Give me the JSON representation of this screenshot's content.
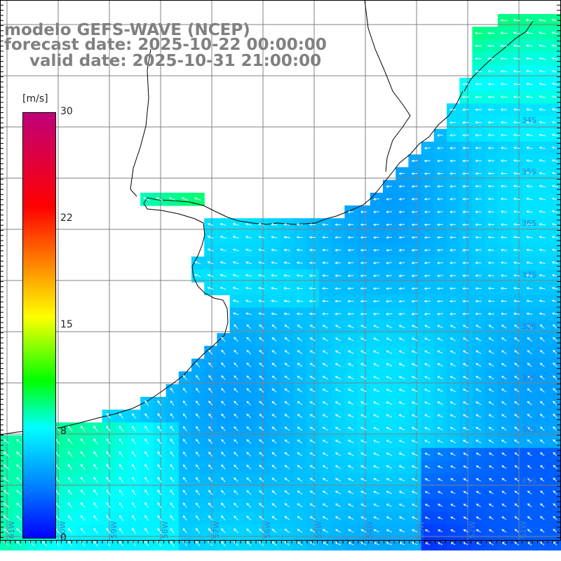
{
  "title": {
    "line1": "modelo GEFS-WAVE (NCEP)",
    "line2": "forecast date: 2025-10-22 00:00:00",
    "line3": "valid date: 2025-10-31 21:00:00"
  },
  "colorbar": {
    "units": "[m/s]",
    "ticks": [
      "30",
      "22",
      "15",
      "8",
      "0"
    ],
    "tick_values": [
      30,
      22,
      15,
      8,
      0
    ],
    "min": 0,
    "max": 30,
    "colors": [
      "#0000ff",
      "#007fff",
      "#00ffff",
      "#00ff00",
      "#ffff00",
      "#ff7f00",
      "#ff0000",
      "#c0007a"
    ]
  },
  "map": {
    "land_color": "#ffffff",
    "grid_color": "#808080",
    "coast_color": "#000000",
    "arrow_color": "#ffffff",
    "lat_labels": [
      "34S",
      "35S",
      "36S",
      "37S",
      "38S",
      "39S",
      "40S",
      "41S"
    ],
    "lon_labels": [
      "61W",
      "60W",
      "59W",
      "58W",
      "57W",
      "56W",
      "55W",
      "54W",
      "53W",
      "52W",
      "51W"
    ]
  }
}
